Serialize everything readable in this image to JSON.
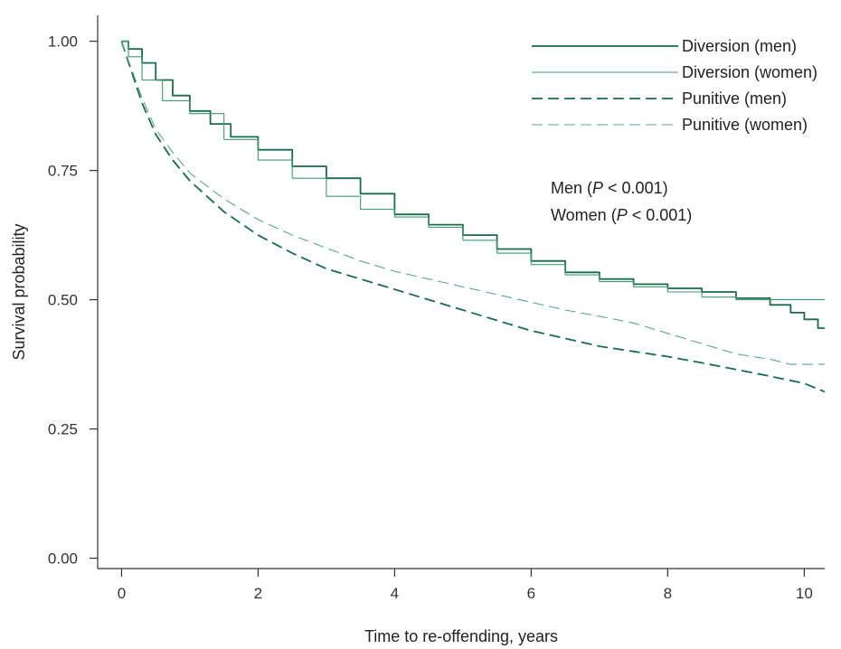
{
  "chart_data": {
    "type": "line",
    "title": "",
    "xlabel": "Time to re-offending, years",
    "ylabel": "Survival probability",
    "xlim": [
      -0.35,
      10.3
    ],
    "ylim": [
      -0.02,
      1.05
    ],
    "x_ticks": [
      0,
      2,
      4,
      6,
      8,
      10
    ],
    "x_tick_labels": [
      "0",
      "2",
      "4",
      "6",
      "8",
      "10"
    ],
    "y_ticks": [
      0,
      0.25,
      0.5,
      0.75,
      1.0
    ],
    "y_tick_labels": [
      "0.00",
      "0.25",
      "0.50",
      "0.75",
      "1.00"
    ],
    "grid": false,
    "legend_position": "top-right",
    "annotations": [
      {
        "prefix": "Men (",
        "p": "P",
        "suffix": " < 0.001)"
      },
      {
        "prefix": "Women (",
        "p": "P",
        "suffix": " < 0.001)"
      }
    ],
    "series": [
      {
        "name": "Diversion (men)",
        "color": "#1a6b4a",
        "line_style": "solid",
        "stroke": "thick",
        "step": true,
        "points": [
          [
            0,
            1.0
          ],
          [
            0.1,
            0.985
          ],
          [
            0.3,
            0.958
          ],
          [
            0.5,
            0.925
          ],
          [
            0.75,
            0.895
          ],
          [
            1.0,
            0.865
          ],
          [
            1.3,
            0.84
          ],
          [
            1.6,
            0.815
          ],
          [
            2.0,
            0.79
          ],
          [
            2.5,
            0.758
          ],
          [
            3.0,
            0.735
          ],
          [
            3.5,
            0.705
          ],
          [
            4.0,
            0.665
          ],
          [
            4.5,
            0.645
          ],
          [
            5.0,
            0.625
          ],
          [
            5.5,
            0.598
          ],
          [
            6.0,
            0.575
          ],
          [
            6.5,
            0.553
          ],
          [
            7.0,
            0.54
          ],
          [
            7.5,
            0.53
          ],
          [
            8.0,
            0.522
          ],
          [
            8.5,
            0.515
          ],
          [
            9.0,
            0.503
          ],
          [
            9.5,
            0.49
          ],
          [
            9.8,
            0.475
          ],
          [
            10.0,
            0.462
          ],
          [
            10.2,
            0.445
          ],
          [
            10.3,
            0.445
          ]
        ]
      },
      {
        "name": "Diversion (women)",
        "color": "#3f9a70",
        "line_style": "solid",
        "stroke": "thin",
        "step": true,
        "points": [
          [
            0,
            1.0
          ],
          [
            0.1,
            0.97
          ],
          [
            0.3,
            0.925
          ],
          [
            0.6,
            0.885
          ],
          [
            1.0,
            0.86
          ],
          [
            1.5,
            0.81
          ],
          [
            2.0,
            0.77
          ],
          [
            2.5,
            0.735
          ],
          [
            3.0,
            0.7
          ],
          [
            3.5,
            0.675
          ],
          [
            4.0,
            0.66
          ],
          [
            4.5,
            0.64
          ],
          [
            5.0,
            0.615
          ],
          [
            5.5,
            0.59
          ],
          [
            6.0,
            0.568
          ],
          [
            6.5,
            0.548
          ],
          [
            7.0,
            0.535
          ],
          [
            7.5,
            0.525
          ],
          [
            8.0,
            0.515
          ],
          [
            8.5,
            0.505
          ],
          [
            9.0,
            0.5
          ],
          [
            10.3,
            0.5
          ]
        ]
      },
      {
        "name": "Punitive (men)",
        "color": "#1a6b4a",
        "line_style": "dashed",
        "stroke": "thick",
        "step": false,
        "points": [
          [
            0,
            1.0
          ],
          [
            0.15,
            0.94
          ],
          [
            0.3,
            0.88
          ],
          [
            0.5,
            0.82
          ],
          [
            0.75,
            0.77
          ],
          [
            1.0,
            0.73
          ],
          [
            1.5,
            0.67
          ],
          [
            2.0,
            0.625
          ],
          [
            2.5,
            0.59
          ],
          [
            3.0,
            0.56
          ],
          [
            3.5,
            0.54
          ],
          [
            4.0,
            0.52
          ],
          [
            4.5,
            0.5
          ],
          [
            5.0,
            0.48
          ],
          [
            5.5,
            0.46
          ],
          [
            6.0,
            0.44
          ],
          [
            6.5,
            0.425
          ],
          [
            7.0,
            0.41
          ],
          [
            7.5,
            0.4
          ],
          [
            8.0,
            0.39
          ],
          [
            8.5,
            0.378
          ],
          [
            9.0,
            0.365
          ],
          [
            9.5,
            0.352
          ],
          [
            10.0,
            0.338
          ],
          [
            10.3,
            0.322
          ]
        ]
      },
      {
        "name": "Punitive (women)",
        "color": "#5aa882",
        "line_style": "dashed",
        "stroke": "thin",
        "step": false,
        "points": [
          [
            0,
            1.0
          ],
          [
            0.15,
            0.945
          ],
          [
            0.3,
            0.89
          ],
          [
            0.5,
            0.83
          ],
          [
            0.75,
            0.785
          ],
          [
            1.0,
            0.745
          ],
          [
            1.5,
            0.695
          ],
          [
            2.0,
            0.655
          ],
          [
            2.5,
            0.625
          ],
          [
            3.0,
            0.6
          ],
          [
            3.5,
            0.575
          ],
          [
            4.0,
            0.555
          ],
          [
            4.5,
            0.54
          ],
          [
            5.0,
            0.525
          ],
          [
            5.5,
            0.51
          ],
          [
            6.0,
            0.495
          ],
          [
            6.5,
            0.48
          ],
          [
            7.0,
            0.468
          ],
          [
            7.5,
            0.455
          ],
          [
            8.0,
            0.435
          ],
          [
            8.5,
            0.415
          ],
          [
            9.0,
            0.395
          ],
          [
            9.5,
            0.385
          ],
          [
            9.8,
            0.375
          ],
          [
            10.3,
            0.375
          ]
        ]
      }
    ]
  }
}
